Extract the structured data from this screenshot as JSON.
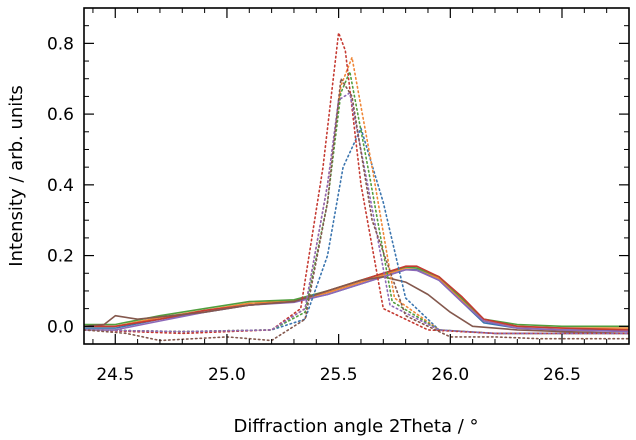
{
  "chart_data": {
    "type": "line",
    "title": "",
    "xlabel": "Diffraction angle 2Theta / °",
    "ylabel": "Intensity / arb. units",
    "xlim": [
      24.36,
      26.8
    ],
    "ylim": [
      -0.05,
      0.9
    ],
    "xticks": [
      24.5,
      25.0,
      25.5,
      26.0,
      26.5
    ],
    "xtick_labels": [
      "24.5",
      "25.0",
      "25.5",
      "26.0",
      "26.5"
    ],
    "yticks": [
      0.0,
      0.2,
      0.4,
      0.6,
      0.8
    ],
    "ytick_labels": [
      "0.0",
      "0.2",
      "0.4",
      "0.6",
      "0.8"
    ],
    "grid": false,
    "legend": "none",
    "series": [
      {
        "name": "solid-blue",
        "style": "solid",
        "color": "#3b75af",
        "x": [
          24.36,
          24.5,
          24.7,
          24.9,
          25.1,
          25.3,
          25.45,
          25.6,
          25.7,
          25.8,
          25.85,
          25.95,
          26.05,
          26.15,
          26.3,
          26.5,
          26.8
        ],
        "y": [
          -0.005,
          -0.005,
          0.02,
          0.04,
          0.06,
          0.07,
          0.09,
          0.12,
          0.14,
          0.16,
          0.16,
          0.13,
          0.07,
          0.01,
          -0.005,
          -0.01,
          -0.01
        ]
      },
      {
        "name": "solid-orange",
        "style": "solid",
        "color": "#ef8636",
        "x": [
          24.36,
          24.5,
          24.7,
          24.9,
          25.1,
          25.3,
          25.45,
          25.6,
          25.7,
          25.8,
          25.85,
          25.95,
          26.05,
          26.15,
          26.3,
          26.5,
          26.8
        ],
        "y": [
          0.0,
          0.0,
          0.025,
          0.045,
          0.065,
          0.072,
          0.095,
          0.125,
          0.145,
          0.165,
          0.165,
          0.135,
          0.075,
          0.015,
          0.0,
          -0.005,
          -0.005
        ]
      },
      {
        "name": "solid-green",
        "style": "solid",
        "color": "#519e3e",
        "x": [
          24.36,
          24.5,
          24.7,
          24.9,
          25.1,
          25.3,
          25.45,
          25.6,
          25.7,
          25.8,
          25.85,
          25.95,
          26.05,
          26.15,
          26.3,
          26.5,
          26.8
        ],
        "y": [
          0.005,
          0.005,
          0.03,
          0.05,
          0.07,
          0.075,
          0.1,
          0.13,
          0.15,
          0.168,
          0.165,
          0.14,
          0.08,
          0.02,
          0.005,
          0.0,
          0.0
        ]
      },
      {
        "name": "solid-red",
        "style": "solid",
        "color": "#c53a32",
        "x": [
          24.36,
          24.5,
          24.7,
          24.9,
          25.1,
          25.3,
          25.45,
          25.6,
          25.7,
          25.8,
          25.85,
          25.95,
          26.05,
          26.15,
          26.3,
          26.5,
          26.8
        ],
        "y": [
          0.0,
          0.0,
          0.02,
          0.045,
          0.06,
          0.07,
          0.1,
          0.13,
          0.15,
          0.17,
          0.17,
          0.14,
          0.085,
          0.02,
          0.0,
          -0.005,
          -0.01
        ]
      },
      {
        "name": "solid-purple",
        "style": "solid",
        "color": "#8d69b8",
        "x": [
          24.36,
          24.5,
          24.7,
          24.9,
          25.1,
          25.3,
          25.45,
          25.6,
          25.7,
          25.8,
          25.85,
          25.95,
          26.05,
          26.15,
          26.3,
          26.5,
          26.8
        ],
        "y": [
          -0.01,
          -0.01,
          0.015,
          0.04,
          0.06,
          0.068,
          0.09,
          0.12,
          0.14,
          0.16,
          0.158,
          0.13,
          0.07,
          0.015,
          -0.005,
          -0.01,
          -0.015
        ]
      },
      {
        "name": "solid-brown",
        "style": "solid",
        "color": "#84584d",
        "x": [
          24.36,
          24.45,
          24.5,
          24.6,
          24.9,
          25.1,
          25.3,
          25.5,
          25.6,
          25.7,
          25.8,
          25.9,
          26.0,
          26.1,
          26.3,
          26.5,
          26.8
        ],
        "y": [
          0.0,
          0.005,
          0.03,
          0.02,
          0.04,
          0.06,
          0.07,
          0.11,
          0.13,
          0.14,
          0.125,
          0.09,
          0.04,
          0.0,
          -0.01,
          -0.015,
          -0.02
        ]
      },
      {
        "name": "dotted-blue",
        "style": "dotted",
        "color": "#3b75af",
        "x": [
          24.36,
          24.8,
          25.2,
          25.35,
          25.45,
          25.52,
          25.6,
          25.7,
          25.8,
          25.95,
          26.2,
          26.8
        ],
        "y": [
          -0.01,
          -0.015,
          -0.01,
          0.02,
          0.2,
          0.45,
          0.56,
          0.35,
          0.08,
          -0.01,
          -0.02,
          -0.02
        ]
      },
      {
        "name": "dotted-orange",
        "style": "dotted",
        "color": "#ef8636",
        "x": [
          24.36,
          24.8,
          25.2,
          25.35,
          25.45,
          25.51,
          25.56,
          25.65,
          25.75,
          25.95,
          26.2,
          26.8
        ],
        "y": [
          -0.01,
          -0.015,
          -0.01,
          0.05,
          0.4,
          0.68,
          0.76,
          0.45,
          0.08,
          -0.01,
          -0.02,
          -0.02
        ]
      },
      {
        "name": "dotted-green",
        "style": "dotted",
        "color": "#519e3e",
        "x": [
          24.36,
          24.8,
          25.2,
          25.35,
          25.45,
          25.51,
          25.55,
          25.64,
          25.74,
          25.95,
          26.2,
          26.8
        ],
        "y": [
          -0.01,
          -0.015,
          -0.01,
          0.04,
          0.35,
          0.66,
          0.72,
          0.42,
          0.07,
          -0.01,
          -0.02,
          -0.02
        ]
      },
      {
        "name": "dotted-red",
        "style": "dotted",
        "color": "#c53a32",
        "x": [
          24.36,
          24.8,
          25.2,
          25.33,
          25.43,
          25.5,
          25.53,
          25.6,
          25.7,
          25.9,
          26.2,
          26.8
        ],
        "y": [
          -0.01,
          -0.02,
          -0.01,
          0.05,
          0.45,
          0.83,
          0.78,
          0.4,
          0.05,
          -0.01,
          -0.02,
          -0.02
        ]
      },
      {
        "name": "dotted-purple",
        "style": "dotted",
        "color": "#8d69b8",
        "x": [
          24.36,
          24.8,
          25.2,
          25.35,
          25.45,
          25.5,
          25.55,
          25.63,
          25.73,
          25.95,
          26.2,
          26.8
        ],
        "y": [
          -0.01,
          -0.015,
          -0.01,
          0.05,
          0.4,
          0.64,
          0.66,
          0.4,
          0.06,
          -0.01,
          -0.02,
          -0.02
        ]
      },
      {
        "name": "dotted-brown",
        "style": "dotted",
        "color": "#84584d",
        "x": [
          24.36,
          24.55,
          24.7,
          25.0,
          25.2,
          25.35,
          25.45,
          25.51,
          25.56,
          25.65,
          25.8,
          26.0,
          26.2,
          26.4,
          26.8
        ],
        "y": [
          -0.01,
          -0.02,
          -0.04,
          -0.03,
          -0.04,
          0.02,
          0.35,
          0.7,
          0.65,
          0.3,
          0.03,
          -0.03,
          -0.03,
          -0.035,
          -0.035
        ]
      }
    ]
  }
}
